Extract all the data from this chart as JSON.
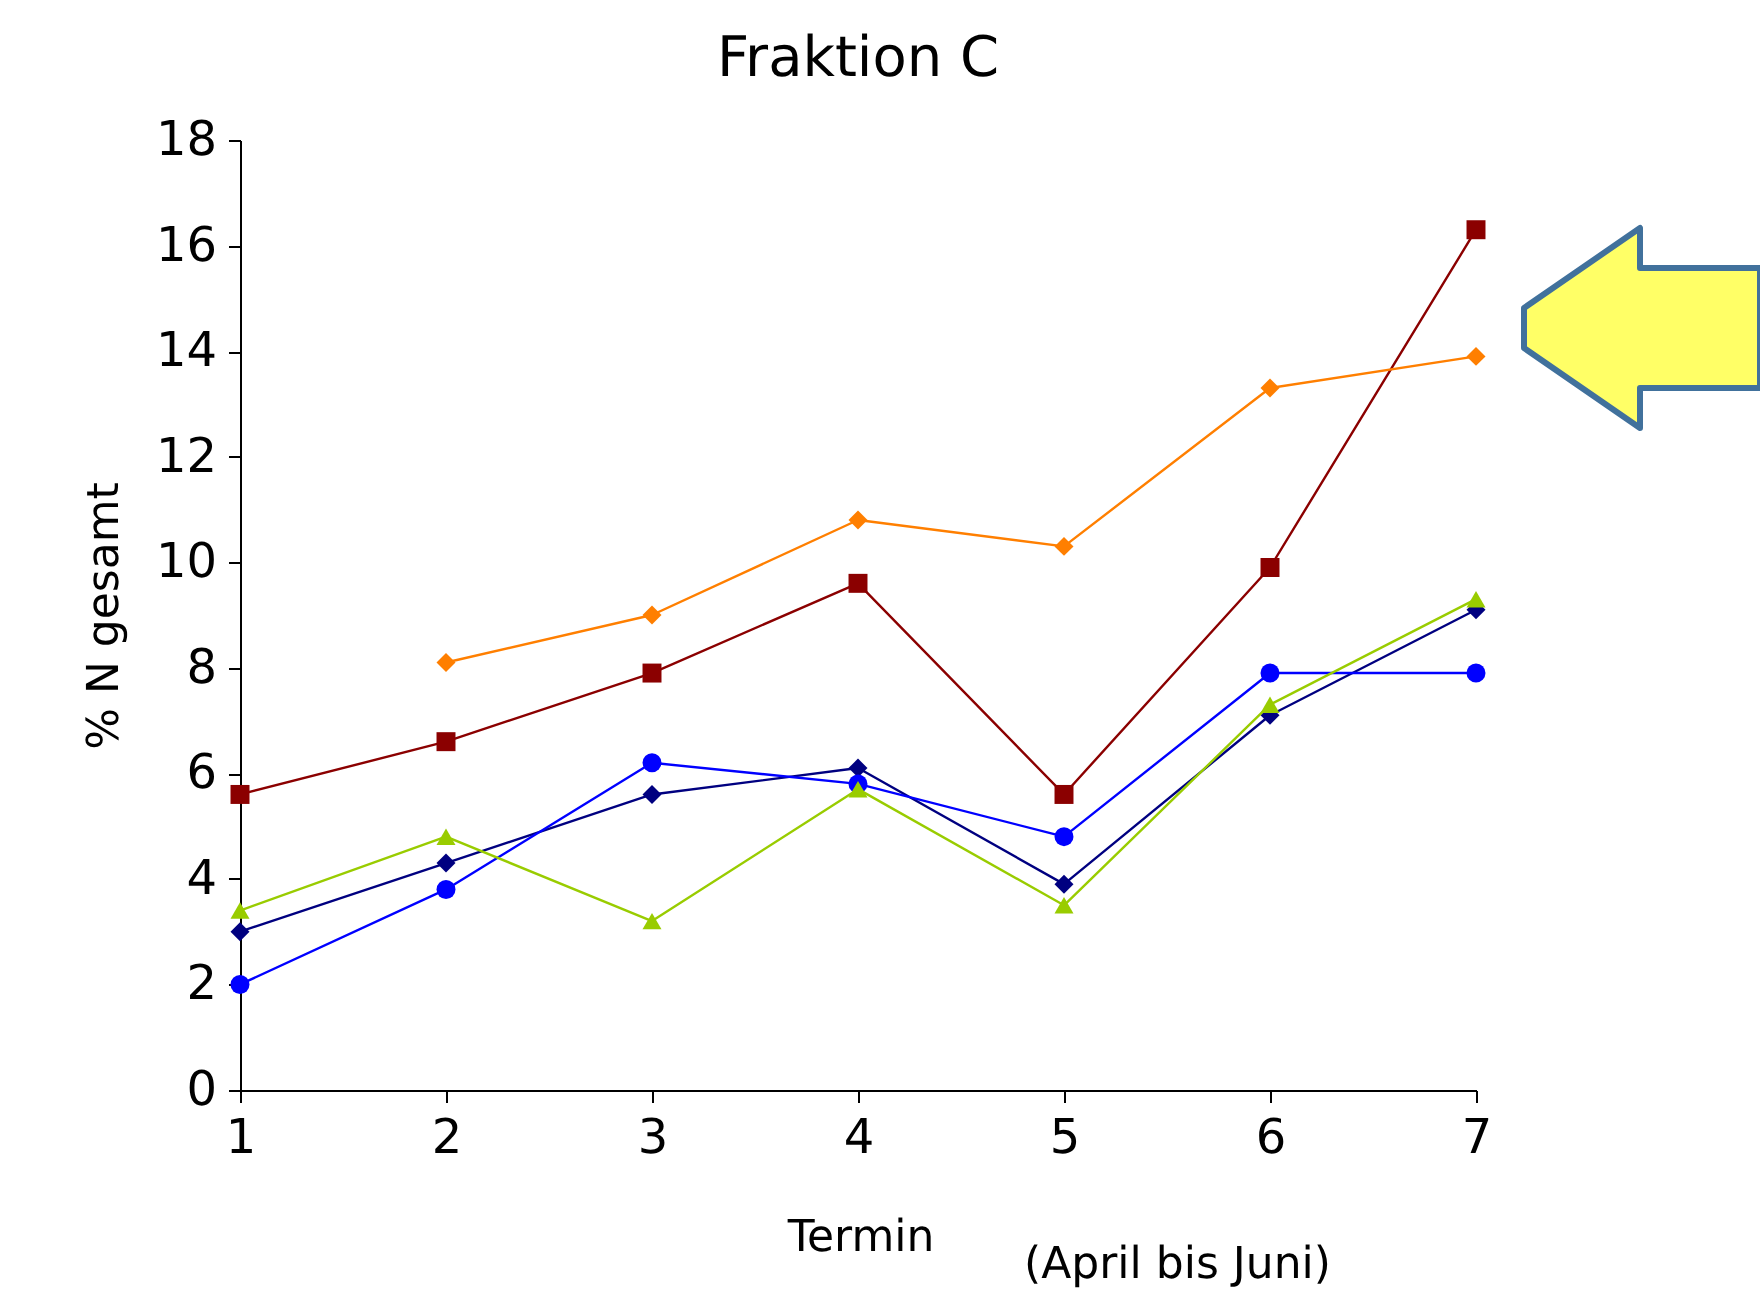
{
  "chart_data": {
    "type": "line",
    "title": "Fraktion C",
    "xlabel": "Termin",
    "ylabel": "% N gesamt",
    "annotations": [
      "(April bis Juni)"
    ],
    "x": [
      1,
      2,
      3,
      4,
      5,
      6,
      7
    ],
    "xlim": [
      1,
      7
    ],
    "xticks": [
      1,
      2,
      3,
      4,
      5,
      6,
      7
    ],
    "ylim": [
      0,
      18
    ],
    "yticks": [
      0,
      2,
      4,
      6,
      8,
      10,
      12,
      14,
      16,
      18
    ],
    "grid": false,
    "line_style": "solid",
    "series": [
      {
        "color": "#8b0000",
        "marker": "square",
        "values": [
          5.6,
          6.6,
          7.9,
          9.6,
          5.6,
          9.9,
          16.3
        ]
      },
      {
        "color": "#ff7f00",
        "marker": "diamond",
        "values": [
          null,
          8.1,
          9.0,
          10.8,
          10.3,
          13.3,
          13.9
        ]
      },
      {
        "color": "#000080",
        "marker": "diamond",
        "values": [
          3.0,
          4.3,
          5.6,
          6.1,
          3.9,
          7.1,
          9.1
        ]
      },
      {
        "color": "#0000ff",
        "marker": "circle",
        "values": [
          2.0,
          3.8,
          6.2,
          5.8,
          4.8,
          7.9,
          7.9
        ]
      },
      {
        "color": "#99cc00",
        "marker": "triangle",
        "values": [
          3.4,
          4.8,
          3.2,
          5.7,
          3.5,
          7.3,
          9.3
        ]
      }
    ]
  }
}
